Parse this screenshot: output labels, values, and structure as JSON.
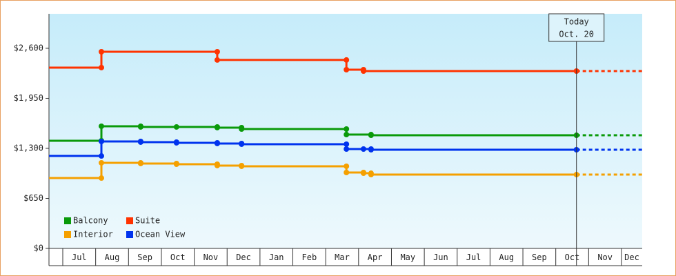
{
  "chart_data": {
    "type": "step-line",
    "ylim": [
      0,
      3048
    ],
    "yticks": [
      {
        "value": 0,
        "label": "$0"
      },
      {
        "value": 650,
        "label": "$650"
      },
      {
        "value": 1300,
        "label": "$1,300"
      },
      {
        "value": 1950,
        "label": "$1,950"
      },
      {
        "value": 2600,
        "label": "$2,600"
      }
    ],
    "xlim": [
      -0.42,
      17.63
    ],
    "xticks": [
      {
        "value": 0,
        "label": "Jul"
      },
      {
        "value": 1,
        "label": "Aug"
      },
      {
        "value": 2,
        "label": "Sep"
      },
      {
        "value": 3,
        "label": "Oct"
      },
      {
        "value": 4,
        "label": "Nov"
      },
      {
        "value": 5,
        "label": "Dec"
      },
      {
        "value": 6,
        "label": "Jan"
      },
      {
        "value": 7,
        "label": "Feb"
      },
      {
        "value": 8,
        "label": "Mar"
      },
      {
        "value": 9,
        "label": "Apr"
      },
      {
        "value": 10,
        "label": "May"
      },
      {
        "value": 11,
        "label": "Jun"
      },
      {
        "value": 12,
        "label": "Jul"
      },
      {
        "value": 13,
        "label": "Aug"
      },
      {
        "value": 14,
        "label": "Sep"
      },
      {
        "value": 15,
        "label": "Oct"
      },
      {
        "value": 16,
        "label": "Nov"
      },
      {
        "value": 17,
        "label": "Dec"
      }
    ],
    "today": {
      "x": 15.63,
      "label": "Today",
      "date": "Oct. 20"
    },
    "legend": "bottom-left",
    "series": [
      {
        "name": "Balcony",
        "color": "#0a9a0a",
        "x": [
          -0.42,
          1.175,
          2.37,
          3.46,
          4.7,
          5.44,
          8.63,
          9.38,
          15.63
        ],
        "values": [
          1399,
          1587,
          1578,
          1578,
          1569,
          1551,
          1479,
          1470,
          1470
        ]
      },
      {
        "name": "Suite",
        "color": "#ff3300",
        "x": [
          -0.42,
          1.175,
          4.7,
          8.63,
          9.15,
          15.63
        ],
        "values": [
          2349,
          2555,
          2448,
          2322,
          2304,
          2304
        ]
      },
      {
        "name": "Interior",
        "color": "#f5a000",
        "x": [
          -0.42,
          1.175,
          2.37,
          3.46,
          4.7,
          5.44,
          8.63,
          9.15,
          9.38,
          15.63
        ],
        "values": [
          914,
          1112,
          1103,
          1094,
          1076,
          1067,
          986,
          977,
          959,
          959
        ]
      },
      {
        "name": "Ocean View",
        "color": "#0033ee",
        "x": [
          -0.42,
          1.175,
          2.37,
          3.46,
          4.7,
          5.44,
          8.63,
          9.15,
          9.38,
          15.63
        ],
        "values": [
          1201,
          1390,
          1381,
          1372,
          1363,
          1354,
          1291,
          1291,
          1282,
          1282
        ]
      }
    ]
  }
}
